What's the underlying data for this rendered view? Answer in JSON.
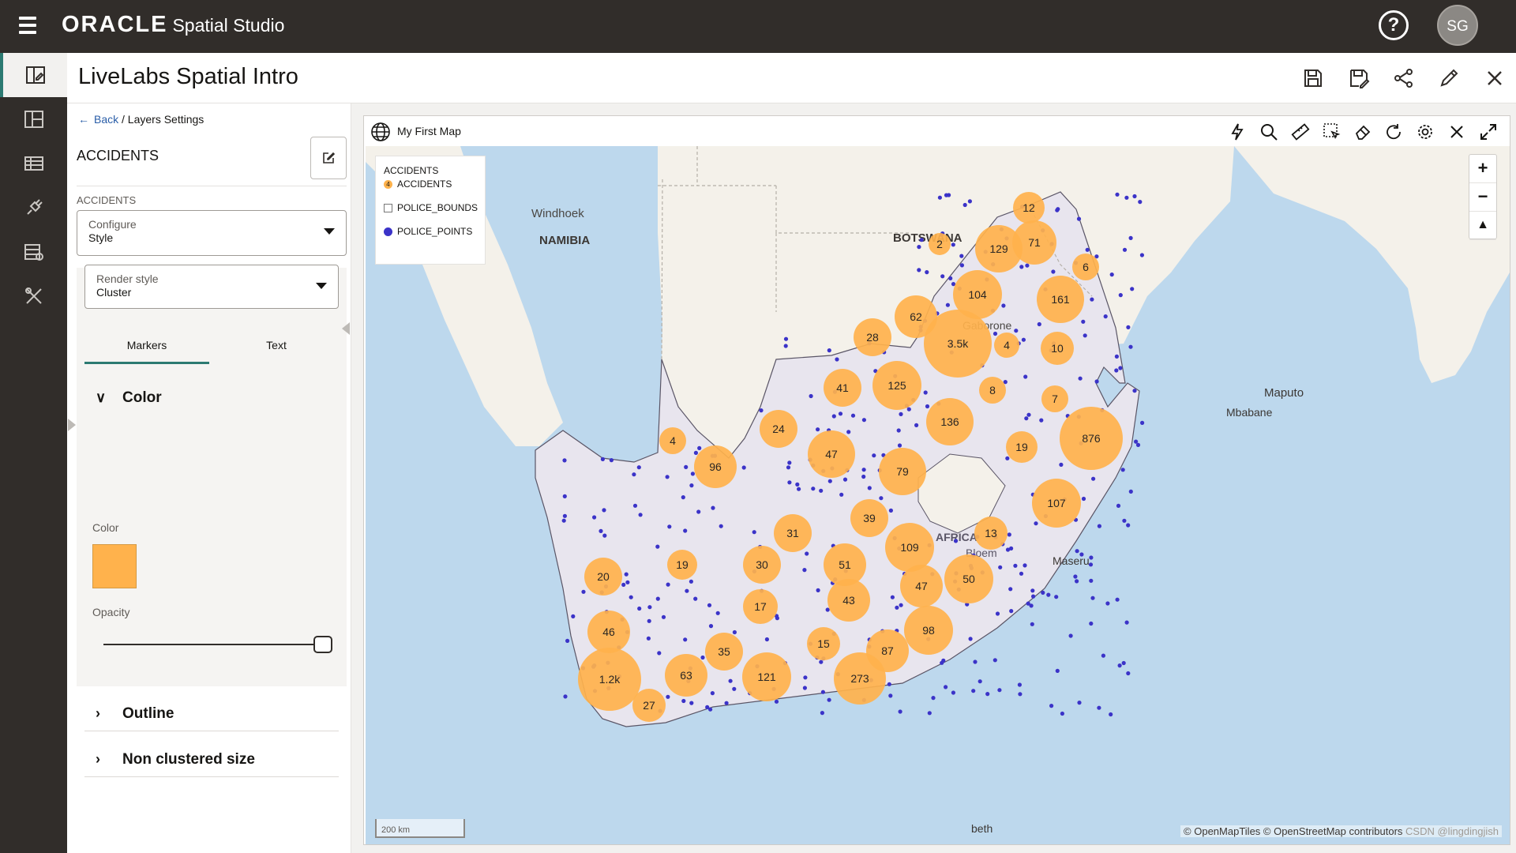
{
  "app": {
    "brand": "ORACLE",
    "product": "Spatial Studio",
    "user_initials": "SG"
  },
  "project": {
    "title": "LiveLabs Spatial Intro"
  },
  "rail": {
    "items": [
      "projects",
      "dashboard",
      "datasets",
      "connections",
      "jobs",
      "tools"
    ]
  },
  "header_actions": [
    "save",
    "save-as",
    "share",
    "edit",
    "close"
  ],
  "panel": {
    "back_label": "Back",
    "breadcrumb_current": "/ Layers Settings",
    "layer_name": "ACCIDENTS",
    "section_label": "ACCIDENTS",
    "configure": {
      "label": "Configure",
      "value": "Style"
    },
    "render_style": {
      "label": "Render style",
      "value": "Cluster"
    },
    "tabs": [
      {
        "label": "Markers",
        "active": true
      },
      {
        "label": "Text",
        "active": false
      }
    ],
    "color_section": {
      "title": "Color",
      "color_label": "Color",
      "color_value": "#ffb24c",
      "opacity_label": "Opacity",
      "opacity_value": 1.0
    },
    "outline_section": {
      "title": "Outline"
    },
    "non_clustered_section": {
      "title": "Non clustered size"
    }
  },
  "map": {
    "title": "My First Map",
    "tools": [
      "lightning-icon",
      "search-icon",
      "ruler-icon",
      "select-icon",
      "eraser-icon",
      "refresh-icon",
      "gear-icon",
      "close-icon",
      "expand-icon"
    ],
    "legend": {
      "title": "ACCIDENTS",
      "items": [
        {
          "label": "ACCIDENTS",
          "kind": "cluster",
          "color": "#ffb24c",
          "count": "4"
        },
        {
          "label": "POLICE_BOUNDS",
          "kind": "polygon",
          "color": "#ffffff"
        },
        {
          "label": "POLICE_POINTS",
          "kind": "point",
          "color": "#3b33c8"
        }
      ]
    },
    "place_labels": [
      "Windhoek",
      "NAMIBIA",
      "BOTSWANA",
      "Gaborone",
      "Maputo",
      "Mbabane",
      "Maseru",
      "Bloem",
      "AFRICA",
      "beth"
    ],
    "clusters": [
      "12",
      "2",
      "129",
      "71",
      "6",
      "104",
      "161",
      "62",
      "28",
      "3.5k",
      "4",
      "10",
      "41",
      "125",
      "8",
      "7",
      "136",
      "876",
      "24",
      "4",
      "96",
      "47",
      "19",
      "79",
      "107",
      "39",
      "13",
      "31",
      "109",
      "19",
      "30",
      "51",
      "20",
      "50",
      "47",
      "17",
      "43",
      "98",
      "46",
      "15",
      "87",
      "35",
      "1.2k",
      "63",
      "121",
      "273",
      "27"
    ],
    "scale_label": "200 km",
    "attribution": "© OpenMapTiles  © OpenStreetMap contributors",
    "watermark": "CSDN @lingdingjish",
    "cluster_color": "#ffb24c",
    "point_color": "#3b33c8"
  }
}
